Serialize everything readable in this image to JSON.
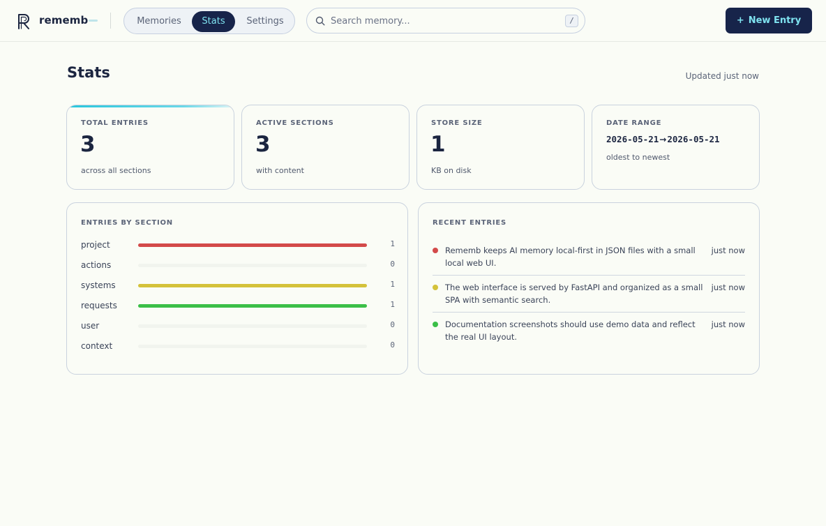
{
  "app": {
    "name": "rememb"
  },
  "nav": {
    "tabs": [
      {
        "label": "Memories",
        "active": false
      },
      {
        "label": "Stats",
        "active": true
      },
      {
        "label": "Settings",
        "active": false
      }
    ]
  },
  "search": {
    "placeholder": "Search memory...",
    "shortcut": "/"
  },
  "header": {
    "new_entry_label": "New Entry",
    "new_entry_icon": "plus-icon"
  },
  "page": {
    "title": "Stats",
    "updated": "Updated just now"
  },
  "stats": {
    "total_entries": {
      "label": "TOTAL ENTRIES",
      "value": "3",
      "sub": "across all sections"
    },
    "active_sections": {
      "label": "ACTIVE SECTIONS",
      "value": "3",
      "sub": "with content"
    },
    "store_size": {
      "label": "STORE SIZE",
      "value": "1",
      "sub": "KB on disk"
    },
    "date_range": {
      "label": "DATE RANGE",
      "start": "2026-05-21",
      "arrow": "→",
      "end": "2026-05-21",
      "sub": "oldest to newest"
    }
  },
  "entries_by_section": {
    "title": "ENTRIES BY SECTION",
    "max": 1,
    "sections": [
      {
        "name": "project",
        "count": "1",
        "color": "#d34a4a"
      },
      {
        "name": "actions",
        "count": "0",
        "color": "#8b96a8"
      },
      {
        "name": "systems",
        "count": "1",
        "color": "#d4c23a"
      },
      {
        "name": "requests",
        "count": "1",
        "color": "#3bbf48"
      },
      {
        "name": "user",
        "count": "0",
        "color": "#8b96a8"
      },
      {
        "name": "context",
        "count": "0",
        "color": "#8b96a8"
      }
    ]
  },
  "recent_entries": {
    "title": "RECENT ENTRIES",
    "items": [
      {
        "text": "Rememb keeps AI memory local-first in JSON files with a small local web UI.",
        "time": "just now",
        "color": "#d34a4a"
      },
      {
        "text": "The web interface is served by FastAPI and organized as a small SPA with semantic search.",
        "time": "just now",
        "color": "#d4c23a"
      },
      {
        "text": "Documentation screenshots should use demo data and reflect the real UI layout.",
        "time": "just now",
        "color": "#3bbf48"
      }
    ]
  },
  "colors": {
    "brand_dark": "#17244a",
    "accent_cyan": "#7fe3f0",
    "background": "#fafcf6"
  }
}
